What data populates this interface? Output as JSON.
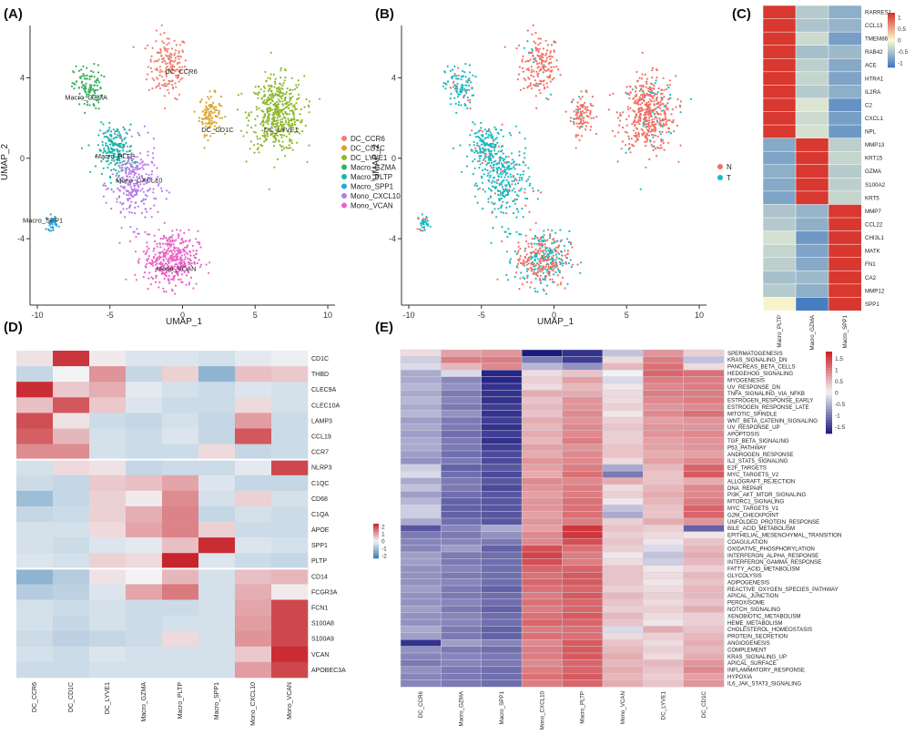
{
  "panel_labels": [
    "(A)",
    "(B)",
    "(C)",
    "(D)",
    "(E)"
  ],
  "colors": {
    "DC_CCR6": "#ef7f6f",
    "DC_CD1C": "#dba32a",
    "DC_LYVE1": "#8fb82e",
    "Macro_GZMA": "#33b05c",
    "Macro_PLTP": "#1cb5a8",
    "Macro_SPP1": "#2aa6dd",
    "Mono_CXCL10": "#b77be9",
    "Mono_VCAN": "#ea63c8",
    "N": "#f26f63",
    "T": "#19b9c2"
  },
  "chart_data": [
    {
      "id": "A",
      "type": "scatter",
      "title": "",
      "xlabel": "UMAP_1",
      "ylabel": "UMAP_2",
      "xlim": [
        -10.5,
        10.5
      ],
      "ylim": [
        -7.3,
        6.6
      ],
      "xticks": [
        "-10",
        "-5",
        "0",
        "5",
        "10"
      ],
      "yticks": [
        "4",
        "0",
        "-4"
      ],
      "legend_position": "right",
      "clusters": [
        {
          "name": "DC_CCR6",
          "label": "DC_CCR6",
          "center": [
            -1.0,
            4.6
          ],
          "n": 180,
          "spread": [
            1.1,
            1.3
          ]
        },
        {
          "name": "DC_CD1C",
          "label": "DC_CD1C",
          "center": [
            1.9,
            2.2
          ],
          "n": 110,
          "spread": [
            0.6,
            0.8
          ]
        },
        {
          "name": "DC_LYVE1",
          "label": "DC_LYVE1",
          "center": [
            6.5,
            2.2
          ],
          "n": 480,
          "spread": [
            1.5,
            1.5
          ]
        },
        {
          "name": "Macro_GZMA",
          "label": "Macro_GZMA",
          "center": [
            -6.5,
            3.5
          ],
          "n": 110,
          "spread": [
            0.8,
            0.9
          ]
        },
        {
          "name": "Macro_PLTP",
          "label": "Macro_PLTP",
          "center": [
            -4.6,
            0.4
          ],
          "n": 200,
          "spread": [
            1.0,
            1.0
          ]
        },
        {
          "name": "Macro_SPP1",
          "label": "Macro_SPP1",
          "center": [
            -9.0,
            -3.2
          ],
          "n": 35,
          "spread": [
            0.3,
            0.3
          ]
        },
        {
          "name": "Mono_CXCL10",
          "label": "Mono_CXCL10",
          "center": [
            -3.3,
            -1.3
          ],
          "n": 260,
          "spread": [
            1.3,
            1.6
          ]
        },
        {
          "name": "Mono_VCAN",
          "label": "Mono_VCAN",
          "center": [
            -0.8,
            -5.0
          ],
          "n": 400,
          "spread": [
            1.5,
            1.1
          ]
        }
      ],
      "plot_labels": [
        "DC_CCR6",
        "DC_CD1C",
        "DC_LYVE1",
        "Macro_GZMA",
        "Macro_PLTP",
        "Macro_SPP1",
        "Mono_CXCL10",
        "Mono_VCAN"
      ]
    },
    {
      "id": "B",
      "type": "scatter",
      "title": "",
      "xlabel": "UMAP_1",
      "ylabel": "UMAP_2",
      "xlim": [
        -10.5,
        10.5
      ],
      "ylim": [
        -7.3,
        6.6
      ],
      "xticks": [
        "-10",
        "-5",
        "0",
        "5",
        "10"
      ],
      "yticks": [
        "4",
        "0",
        "-4"
      ],
      "legend": [
        "N",
        "T"
      ],
      "legend_position": "right"
    },
    {
      "id": "C",
      "type": "heatmap",
      "title": "",
      "columns": [
        "Macro_PLTP",
        "Macro_GZMA",
        "Macro_SPP1"
      ],
      "rows": [
        "RARRES1",
        "CCL13",
        "TMEM86A",
        "RAB42",
        "ACE",
        "HTRA1",
        "IL2RA",
        "C2",
        "CXCL1",
        "NPL",
        "MMP13",
        "KRT15",
        "GZMA",
        "S100A2",
        "KRT5",
        "MMP7",
        "CCL22",
        "CHI3L1",
        "MATK",
        "FN1",
        "CA2",
        "MMP12",
        "SPP1"
      ],
      "values": [
        [
          1.15,
          -0.45,
          -0.7
        ],
        [
          1.15,
          -0.5,
          -0.65
        ],
        [
          1.15,
          -0.3,
          -0.85
        ],
        [
          1.15,
          -0.55,
          -0.6
        ],
        [
          1.15,
          -0.4,
          -0.75
        ],
        [
          1.15,
          -0.35,
          -0.8
        ],
        [
          1.15,
          -0.45,
          -0.7
        ],
        [
          1.15,
          -0.2,
          -0.95
        ],
        [
          1.15,
          -0.3,
          -0.85
        ],
        [
          1.15,
          -0.25,
          -0.9
        ],
        [
          -0.75,
          1.15,
          -0.4
        ],
        [
          -0.8,
          1.15,
          -0.35
        ],
        [
          -0.7,
          1.15,
          -0.45
        ],
        [
          -0.75,
          1.15,
          -0.4
        ],
        [
          -0.8,
          1.15,
          -0.35
        ],
        [
          -0.5,
          -0.65,
          1.15
        ],
        [
          -0.45,
          -0.7,
          1.15
        ],
        [
          -0.25,
          -0.9,
          1.15
        ],
        [
          -0.35,
          -0.8,
          1.15
        ],
        [
          -0.4,
          -0.75,
          1.15
        ],
        [
          -0.55,
          -0.6,
          1.15
        ],
        [
          -0.45,
          -0.7,
          1.15
        ],
        [
          0.05,
          -1.15,
          1.15
        ]
      ],
      "colorbar_ticks": [
        "1",
        "0.5",
        "0",
        "-0.5",
        "-1"
      ],
      "vmin": -1.2,
      "vmax": 1.2
    },
    {
      "id": "D",
      "type": "heatmap",
      "title": "",
      "columns": [
        "DC_CCR6",
        "DC_CD1C",
        "DC_LYVE1",
        "Macro_GZMA",
        "Macro_PLTP",
        "Macro_SPP1",
        "Mono_CXCL10",
        "Mono_VCAN"
      ],
      "rows": [
        "CD1C",
        "THBD",
        "CLEC9A",
        "CLEC10A",
        "LAMP3",
        "CCL19",
        "CCR7",
        "NLRP3",
        "C1QC",
        "CD68",
        "C1QA",
        "APOE",
        "SPP1",
        "PLTP",
        "CD14",
        "FCGR3A",
        "FCN1",
        "S100A8",
        "S100A9",
        "VCAN",
        "APOBEC3A"
      ],
      "values": [
        [
          0.2,
          2.2,
          0.1,
          -0.3,
          -0.3,
          -0.4,
          -0.2,
          -0.1
        ],
        [
          -0.6,
          0.0,
          1.1,
          -0.6,
          0.4,
          -1.3,
          0.6,
          0.5
        ],
        [
          2.3,
          0.5,
          0.8,
          -0.2,
          -0.4,
          -0.5,
          -0.3,
          -0.4
        ],
        [
          0.6,
          1.8,
          0.5,
          -0.3,
          -0.5,
          -0.5,
          0.3,
          -0.4
        ],
        [
          1.9,
          0.2,
          -0.5,
          -0.6,
          -0.4,
          -0.6,
          1.0,
          -0.5
        ],
        [
          1.7,
          0.7,
          -0.4,
          -0.5,
          -0.3,
          -0.6,
          1.8,
          -0.5
        ],
        [
          1.2,
          1.2,
          -0.4,
          -0.5,
          -0.5,
          0.3,
          -0.6,
          -0.5
        ],
        [
          -0.4,
          0.3,
          0.2,
          -0.6,
          -0.5,
          -0.5,
          -0.2,
          2.0
        ],
        [
          -0.5,
          -0.6,
          0.5,
          0.6,
          0.9,
          -0.3,
          -0.6,
          -0.6
        ],
        [
          -1.1,
          -0.6,
          0.4,
          0.1,
          1.2,
          -0.4,
          0.4,
          -0.4
        ],
        [
          -0.6,
          -0.5,
          0.4,
          0.8,
          1.3,
          -0.6,
          -0.4,
          -0.5
        ],
        [
          -0.4,
          -0.4,
          0.3,
          0.9,
          1.3,
          0.4,
          -0.5,
          -0.5
        ],
        [
          -0.4,
          -0.5,
          -0.3,
          -0.2,
          0.6,
          2.3,
          -0.3,
          -0.4
        ],
        [
          -0.3,
          -0.4,
          0.4,
          0.3,
          2.5,
          -0.3,
          -0.5,
          -0.6
        ],
        [
          -1.3,
          -0.8,
          0.2,
          0.0,
          0.7,
          -0.4,
          0.6,
          0.7
        ],
        [
          -0.8,
          -0.7,
          -0.3,
          0.9,
          1.4,
          -0.4,
          0.8,
          0.1
        ],
        [
          -0.4,
          -0.5,
          -0.4,
          -0.5,
          -0.5,
          -0.4,
          0.9,
          2.0
        ],
        [
          -0.4,
          -0.6,
          -0.4,
          -0.5,
          -0.4,
          -0.4,
          1.0,
          2.0
        ],
        [
          -0.5,
          -0.7,
          -0.6,
          -0.5,
          0.3,
          -0.4,
          1.1,
          2.0
        ],
        [
          -0.4,
          -0.5,
          -0.3,
          -0.4,
          -0.4,
          -0.4,
          0.5,
          2.3
        ],
        [
          -0.5,
          -0.5,
          -0.4,
          -0.4,
          -0.4,
          -0.4,
          1.0,
          2.0
        ]
      ],
      "row_groups": [
        7,
        14
      ],
      "colorbar_ticks": [
        "2",
        "1",
        "0",
        "-1",
        "-2"
      ],
      "vmin": -2.4,
      "vmax": 2.4
    },
    {
      "id": "E",
      "type": "heatmap",
      "title": "",
      "columns": [
        "DC_CCR6",
        "Macro_GZMA",
        "Macro_SPP1",
        "Mono_CXCL10",
        "Macro_PLTP",
        "Mono_VCAN",
        "DC_LYVE1",
        "DC_CD1C"
      ],
      "rows": [
        "SPERMATOGENESIS",
        "KRAS_SIGNALING_DN",
        "PANCREAS_BETA_CELLS",
        "HEDGEHOG_SIGNALING",
        "MYOGENESIS",
        "UV_RESPONSE_DN",
        "TNFA_SIGNALING_VIA_NFKB",
        "ESTROGEN_RESPONSE_EARLY",
        "ESTROGEN_RESPONSE_LATE",
        "MITOTIC_SPINDLE",
        "WNT_BETA_CATENIN_SIGNALING",
        "UV_RESPONSE_UP",
        "APOPTOSIS",
        "TGF_BETA_SIGNALING",
        "P53_PATHWAY",
        "ANDROGEN_RESPONSE",
        "IL2_STAT5_SIGNALING",
        "E2F_TARGETS",
        "MYC_TARGETS_V2",
        "ALLOGRAFT_REJECTION",
        "DNA_REPAIR",
        "PI3K_AKT_MTOR_SIGNALING",
        "MTORC1_SIGNALING",
        "MYC_TARGETS_V1",
        "G2M_CHECKPOINT",
        "UNFOLDED_PROTEIN_RESPONSE",
        "BILE_ACID_METABOLISM",
        "EPITHELIAL_MESENCHYMAL_TRANSITION",
        "COAGULATION",
        "OXIDATIVE_PHOSPHORYLATION",
        "INTERFERON_ALPHA_RESPONSE",
        "INTERFERON_GAMMA_RESPONSE",
        "FATTY_ACID_METABOLISM",
        "GLYCOLYSIS",
        "ADIPOGENESIS",
        "REACTIVE_OXYGEN_SPECIES_PATHWAY",
        "APICAL_JUNCTION",
        "PEROXISOME",
        "NOTCH_SIGNALING",
        "XENOBIOTIC_METABOLISM",
        "HEME_METABOLISM",
        "CHOLESTEROL_HOMEOSTASIS",
        "PROTEIN_SECRETION",
        "ANGIOGENESIS",
        "COMPLEMENT",
        "KRAS_SIGNALING_UP",
        "APICAL_SURFACE",
        "INFLAMMATORY_RESPONSE",
        "HYPOXIA",
        "IL6_JAK_STAT3_SIGNALING"
      ],
      "values": [
        [
          0.2,
          0.7,
          0.8,
          -1.8,
          -1.6,
          -0.4,
          0.8,
          0.3
        ],
        [
          -0.3,
          1.0,
          1.0,
          -1.0,
          -1.5,
          0.2,
          1.0,
          -0.4
        ],
        [
          -0.2,
          0.5,
          0.9,
          -0.5,
          -0.8,
          0.5,
          1.1,
          0.2
        ],
        [
          -0.6,
          -0.2,
          -1.7,
          0.2,
          0.4,
          0.0,
          1.2,
          1.1
        ],
        [
          -0.6,
          -0.9,
          -1.7,
          0.3,
          0.7,
          -0.2,
          1.0,
          1.0
        ],
        [
          -0.5,
          -0.8,
          -1.6,
          0.2,
          0.5,
          0.1,
          0.9,
          1.0
        ],
        [
          -0.6,
          -1.0,
          -1.6,
          0.6,
          0.6,
          0.2,
          1.0,
          1.0
        ],
        [
          -0.5,
          -0.9,
          -1.6,
          0.4,
          0.8,
          0.2,
          0.9,
          1.0
        ],
        [
          -0.6,
          -1.0,
          -1.5,
          0.5,
          0.8,
          0.3,
          0.8,
          0.9
        ],
        [
          -0.5,
          -0.8,
          -1.6,
          0.4,
          0.9,
          0.1,
          0.9,
          1.1
        ],
        [
          -0.7,
          -1.0,
          -1.5,
          0.6,
          0.8,
          0.3,
          0.7,
          0.8
        ],
        [
          -0.6,
          -1.0,
          -1.6,
          0.5,
          0.9,
          0.4,
          0.8,
          0.8
        ],
        [
          -0.7,
          -1.1,
          -1.5,
          0.6,
          0.9,
          0.3,
          0.8,
          0.9
        ],
        [
          -0.6,
          -1.0,
          -1.6,
          0.5,
          1.0,
          0.3,
          0.7,
          0.8
        ],
        [
          -0.6,
          -1.0,
          -1.5,
          0.7,
          0.8,
          0.4,
          0.7,
          0.8
        ],
        [
          -0.7,
          -1.1,
          -1.4,
          0.6,
          0.9,
          0.4,
          0.6,
          0.7
        ],
        [
          -0.8,
          -1.0,
          -1.4,
          0.8,
          0.9,
          0.2,
          0.7,
          0.9
        ],
        [
          -0.3,
          -1.2,
          -1.3,
          0.7,
          1.0,
          -0.6,
          0.5,
          1.2
        ],
        [
          -0.2,
          -1.1,
          -1.4,
          0.6,
          1.1,
          -1.0,
          0.4,
          1.3
        ],
        [
          -0.6,
          -1.0,
          -1.3,
          0.9,
          0.9,
          0.6,
          0.4,
          0.6
        ],
        [
          -0.4,
          -1.0,
          -1.4,
          0.8,
          1.0,
          0.2,
          0.5,
          0.9
        ],
        [
          -0.7,
          -1.1,
          -1.3,
          0.7,
          1.0,
          0.3,
          0.6,
          0.9
        ],
        [
          -0.5,
          -1.2,
          -1.3,
          0.8,
          1.1,
          0.1,
          0.5,
          1.0
        ],
        [
          -0.3,
          -1.2,
          -1.3,
          0.8,
          1.1,
          -0.4,
          0.4,
          1.2
        ],
        [
          -0.3,
          -1.2,
          -1.3,
          0.7,
          1.1,
          -0.6,
          0.4,
          1.2
        ],
        [
          -0.6,
          -1.1,
          -1.3,
          0.8,
          1.0,
          0.3,
          0.6,
          0.8
        ],
        [
          -1.3,
          -0.9,
          -0.6,
          0.7,
          1.6,
          0.4,
          0.3,
          -1.2
        ],
        [
          -1.0,
          -1.0,
          -0.8,
          0.9,
          1.6,
          0.3,
          0.2,
          0.1
        ],
        [
          -0.9,
          -0.9,
          -1.0,
          0.9,
          1.4,
          0.4,
          0.1,
          0.4
        ],
        [
          -0.9,
          -0.7,
          -1.2,
          1.4,
          1.1,
          0.3,
          -0.2,
          0.5
        ],
        [
          -0.7,
          -1.0,
          -1.1,
          1.5,
          1.0,
          0.1,
          -0.4,
          0.6
        ],
        [
          -0.7,
          -1.0,
          -1.1,
          1.4,
          1.0,
          0.2,
          -0.3,
          0.5
        ],
        [
          -0.8,
          -0.9,
          -1.1,
          1.2,
          1.2,
          0.4,
          0.1,
          0.3
        ],
        [
          -0.8,
          -1.0,
          -1.1,
          1.1,
          1.3,
          0.4,
          0.2,
          0.5
        ],
        [
          -0.8,
          -0.9,
          -1.1,
          1.2,
          1.3,
          0.4,
          0.1,
          0.4
        ],
        [
          -0.7,
          -1.0,
          -1.2,
          1.1,
          1.2,
          0.3,
          0.2,
          0.5
        ],
        [
          -0.8,
          -1.0,
          -1.1,
          1.0,
          1.3,
          0.5,
          0.3,
          0.5
        ],
        [
          -0.8,
          -0.9,
          -1.1,
          1.1,
          1.2,
          0.4,
          0.2,
          0.4
        ],
        [
          -0.7,
          -1.0,
          -1.2,
          1.0,
          1.2,
          0.3,
          0.3,
          0.6
        ],
        [
          -0.8,
          -0.9,
          -1.1,
          1.1,
          1.3,
          0.5,
          0.2,
          0.3
        ],
        [
          -0.8,
          -0.9,
          -1.1,
          1.2,
          1.2,
          0.4,
          0.1,
          0.3
        ],
        [
          -0.6,
          -1.0,
          -1.2,
          1.0,
          1.1,
          -0.2,
          0.6,
          0.4
        ],
        [
          -0.7,
          -1.0,
          -1.2,
          1.1,
          1.1,
          0.2,
          0.3,
          0.5
        ],
        [
          -1.6,
          -0.7,
          -0.9,
          0.9,
          1.3,
          0.4,
          0.2,
          0.6
        ],
        [
          -0.8,
          -1.0,
          -1.1,
          1.0,
          1.3,
          0.5,
          0.3,
          0.5
        ],
        [
          -0.9,
          -0.9,
          -1.0,
          1.0,
          1.3,
          0.6,
          0.2,
          0.6
        ],
        [
          -1.0,
          -0.9,
          -1.0,
          0.9,
          1.2,
          0.5,
          0.5,
          0.8
        ],
        [
          -0.8,
          -1.0,
          -1.1,
          1.0,
          1.2,
          0.6,
          0.4,
          0.9
        ],
        [
          -0.9,
          -1.0,
          -1.1,
          1.1,
          1.3,
          0.5,
          0.3,
          0.7
        ],
        [
          -0.9,
          -1.0,
          -1.1,
          1.0,
          1.2,
          0.6,
          0.4,
          0.8
        ]
      ],
      "colorbar_ticks": [
        "1.5",
        "1",
        "0.5",
        "0",
        "-0.5",
        "-1",
        "-1.5"
      ],
      "vmin": -1.8,
      "vmax": 1.8
    }
  ]
}
